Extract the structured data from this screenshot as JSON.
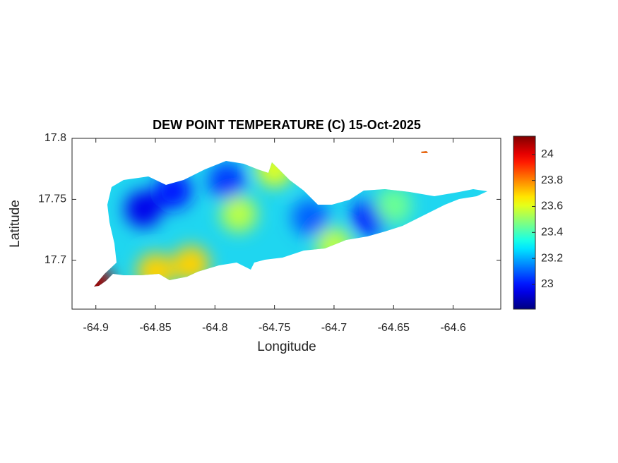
{
  "chart_data": {
    "type": "contourf",
    "title": "DEW POINT TEMPERATURE (C) 15-Oct-2025",
    "x_label": "Longitude",
    "y_label": "Latitude",
    "xlim": [
      -64.92,
      -64.56
    ],
    "ylim": [
      17.66,
      17.8
    ],
    "xticks": [
      -64.9,
      -64.85,
      -64.8,
      -64.75,
      -64.7,
      -64.65,
      -64.6
    ],
    "yticks": [
      17.7,
      17.75,
      17.8
    ],
    "colormap": "jet",
    "clim": [
      22.81,
      24.14
    ],
    "colorbar_ticks": [
      23,
      23.2,
      23.4,
      23.6,
      23.8,
      24
    ],
    "points": [
      {
        "x": -64.86,
        "y": 17.742,
        "value": 22.95
      },
      {
        "x": -64.835,
        "y": 17.757,
        "value": 23.0
      },
      {
        "x": -64.79,
        "y": 17.765,
        "value": 23.05
      },
      {
        "x": -64.67,
        "y": 17.735,
        "value": 23.0
      },
      {
        "x": -64.72,
        "y": 17.735,
        "value": 23.1
      },
      {
        "x": -64.9,
        "y": 17.68,
        "value": 24.1
      },
      {
        "x": -64.82,
        "y": 17.697,
        "value": 23.7
      },
      {
        "x": -64.85,
        "y": 17.691,
        "value": 23.7
      },
      {
        "x": -64.78,
        "y": 17.738,
        "value": 23.55
      },
      {
        "x": -64.75,
        "y": 17.775,
        "value": 23.6
      },
      {
        "x": -64.7,
        "y": 17.712,
        "value": 23.55
      },
      {
        "x": -64.65,
        "y": 17.745,
        "value": 23.45
      },
      {
        "x": -64.625,
        "y": 17.787,
        "value": 23.85
      }
    ]
  }
}
